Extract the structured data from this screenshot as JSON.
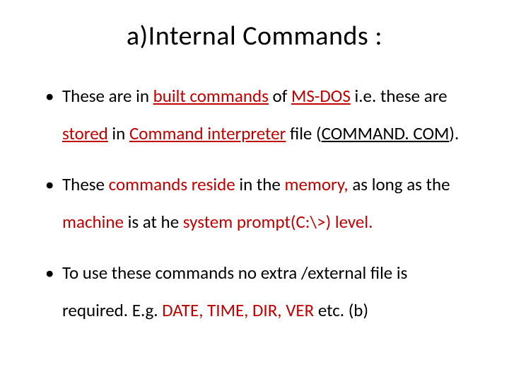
{
  "colors": {
    "text": "#000000",
    "accent": "#c00000",
    "background": "#ffffff"
  },
  "typography": {
    "family": "Calibri",
    "title_fontsize": 38,
    "body_fontsize": 25,
    "line_height": 2.1
  },
  "title": "a)Internal Commands :",
  "bullets": {
    "b1": {
      "t1": "These are in ",
      "built_commands": "built commands",
      "t2": " of ",
      "msdos": "MS-DOS",
      "t3": " i.e. these are ",
      "stored": "stored",
      "t4": " in ",
      "cmd_interp": "Command interpreter",
      "t5": " file (",
      "cmdcom": "COMMAND. COM",
      "t6": ")."
    },
    "b2": {
      "t1": "These ",
      "commands_reside": "commands reside",
      "t2": " in the ",
      "memory": "memory,",
      "t3": " as long as the ",
      "machine": "machine",
      "t4": " is at he ",
      "sysprompt": "system prompt(",
      "cprompt": "C:\\>",
      "t5": ") level."
    },
    "b3": {
      "t1": " To use these commands no extra /external file is required. E.g. ",
      "date": "DATE, ",
      "time": "TIME, ",
      "dir": "DIR, ",
      "ver": "VER",
      "t2": " etc. (b)"
    }
  }
}
